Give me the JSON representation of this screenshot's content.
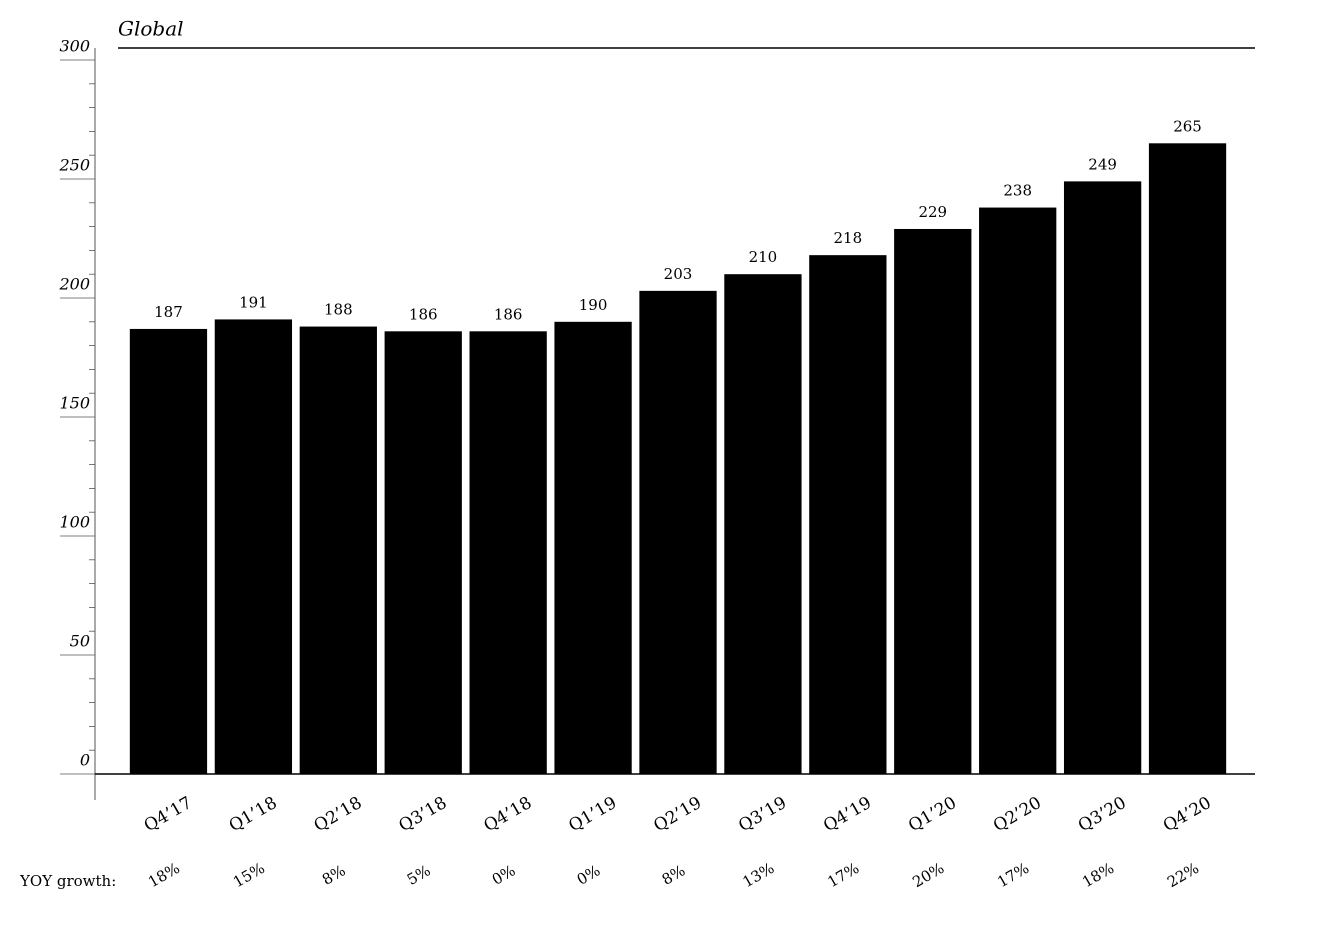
{
  "chart_data": {
    "type": "bar",
    "title": "Global",
    "categories": [
      "Q4’17",
      "Q1’18",
      "Q2’18",
      "Q3’18",
      "Q4’18",
      "Q1’19",
      "Q2’19",
      "Q3’19",
      "Q4’19",
      "Q1’20",
      "Q2’20",
      "Q3’20",
      "Q4’20"
    ],
    "values": [
      187,
      191,
      188,
      186,
      186,
      190,
      203,
      210,
      218,
      229,
      238,
      249,
      265
    ],
    "color": "#000000",
    "ylim": [
      0,
      300
    ],
    "yticks": [
      0,
      50,
      100,
      150,
      200,
      250,
      300
    ],
    "yoy_growth_label": "YOY growth:",
    "yoy_growth": [
      "18%",
      "15%",
      "8%",
      "5%",
      "0%",
      "0%",
      "8%",
      "13%",
      "17%",
      "20%",
      "17%",
      "18%",
      "22%"
    ]
  }
}
